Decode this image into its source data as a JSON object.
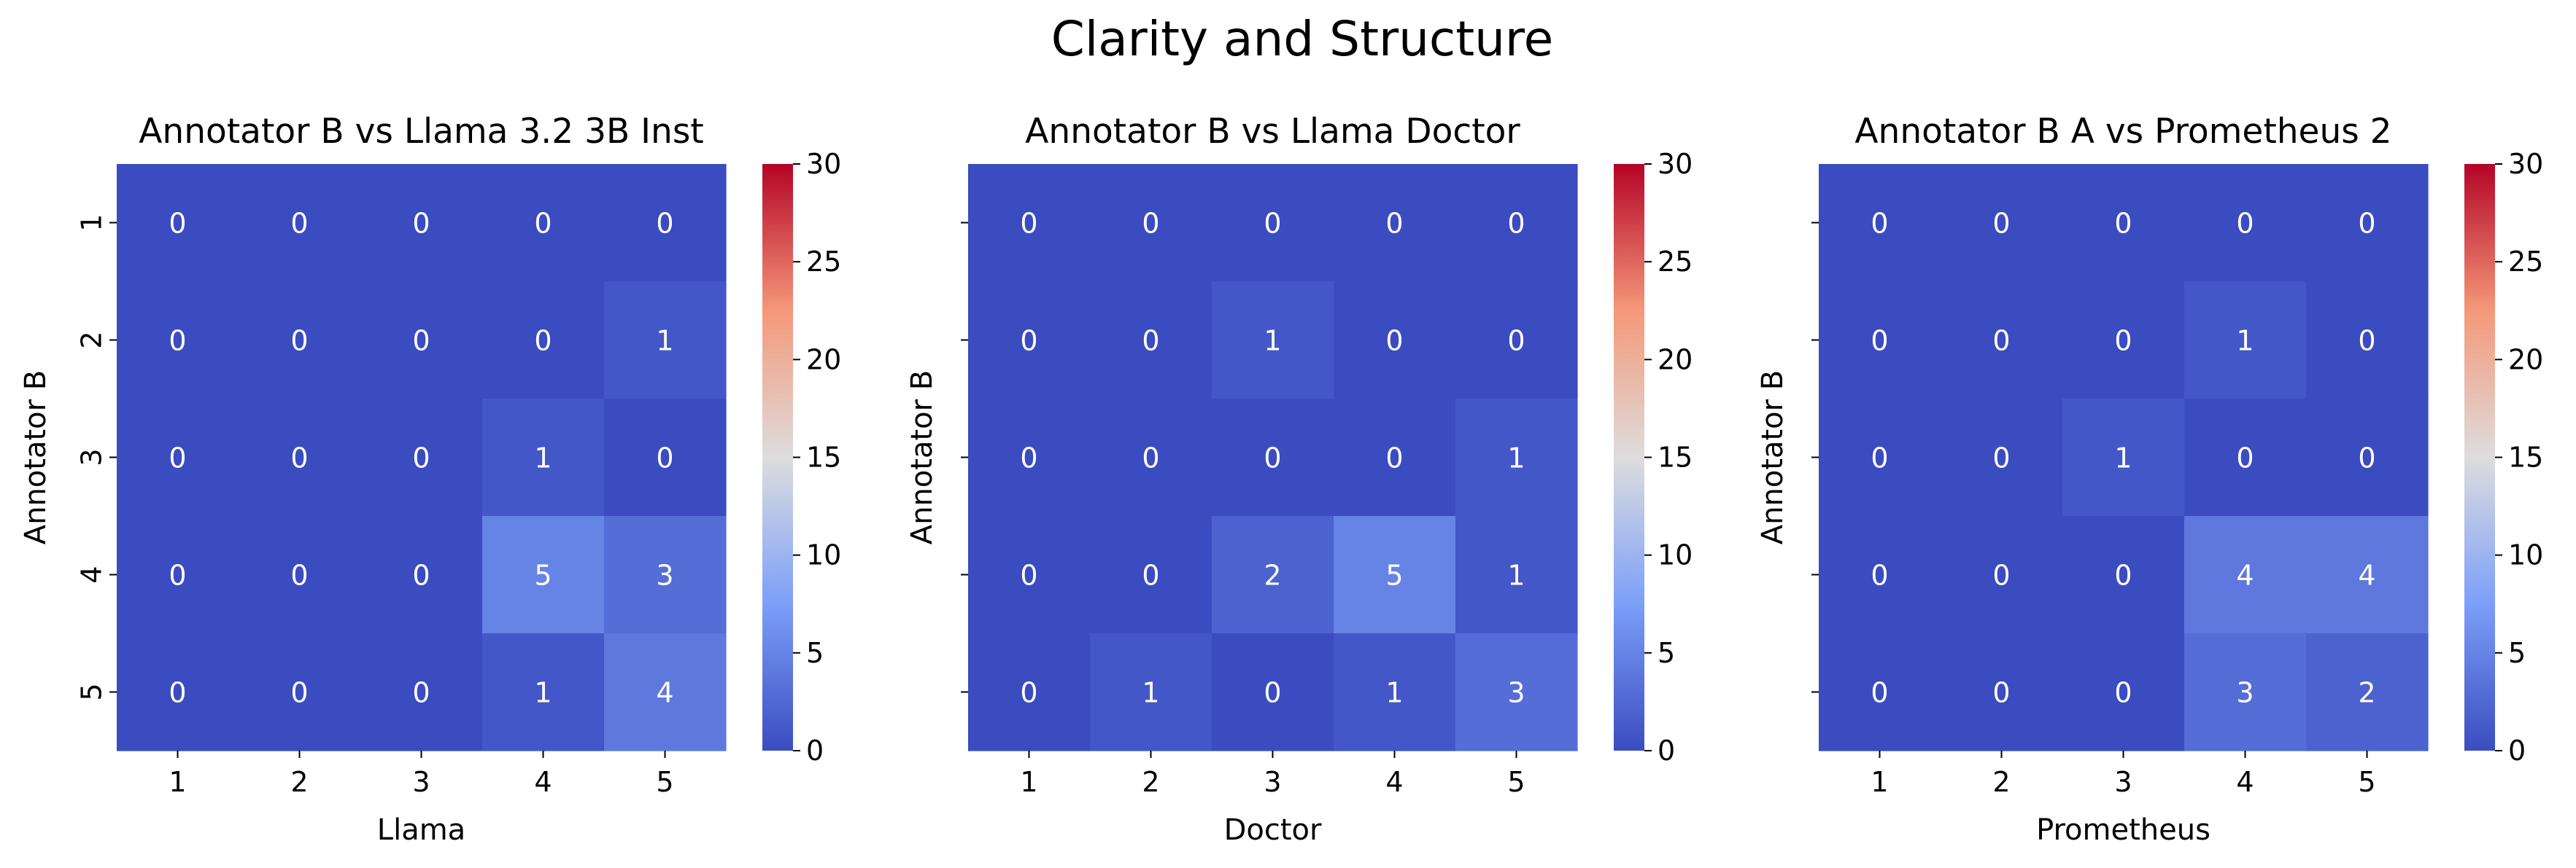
{
  "figure": {
    "title": "Clarity and Structure"
  },
  "chart_data": [
    {
      "type": "heatmap",
      "title": "Annotator B vs Llama 3.2 3B Inst",
      "xlabel": "Llama",
      "ylabel": "Annotator B",
      "x_categories": [
        "1",
        "2",
        "3",
        "4",
        "5"
      ],
      "y_categories": [
        "1",
        "2",
        "3",
        "4",
        "5"
      ],
      "values": [
        [
          0,
          0,
          0,
          0,
          0
        ],
        [
          0,
          0,
          0,
          0,
          1
        ],
        [
          0,
          0,
          0,
          1,
          0
        ],
        [
          0,
          0,
          0,
          5,
          3
        ],
        [
          0,
          0,
          0,
          1,
          4
        ]
      ],
      "colorbar": {
        "min": 0,
        "max": 30,
        "ticks": [
          0,
          5,
          10,
          15,
          20,
          25,
          30
        ],
        "colormap": "coolwarm"
      }
    },
    {
      "type": "heatmap",
      "title": "Annotator B vs Llama Doctor",
      "xlabel": "Doctor",
      "ylabel": "Annotator B",
      "x_categories": [
        "1",
        "2",
        "3",
        "4",
        "5"
      ],
      "y_categories": [
        "1",
        "2",
        "3",
        "4",
        "5"
      ],
      "values": [
        [
          0,
          0,
          0,
          0,
          0
        ],
        [
          0,
          0,
          1,
          0,
          0
        ],
        [
          0,
          0,
          0,
          0,
          1
        ],
        [
          0,
          0,
          2,
          5,
          1
        ],
        [
          0,
          1,
          0,
          1,
          3
        ]
      ],
      "colorbar": {
        "min": 0,
        "max": 30,
        "ticks": [
          0,
          5,
          10,
          15,
          20,
          25,
          30
        ],
        "colormap": "coolwarm"
      }
    },
    {
      "type": "heatmap",
      "title": "Annotator B A vs Prometheus 2",
      "xlabel": "Prometheus",
      "ylabel": "Annotator B",
      "x_categories": [
        "1",
        "2",
        "3",
        "4",
        "5"
      ],
      "y_categories": [
        "1",
        "2",
        "3",
        "4",
        "5"
      ],
      "values": [
        [
          0,
          0,
          0,
          0,
          0
        ],
        [
          0,
          0,
          0,
          1,
          0
        ],
        [
          0,
          0,
          1,
          0,
          0
        ],
        [
          0,
          0,
          0,
          4,
          4
        ],
        [
          0,
          0,
          0,
          3,
          2
        ]
      ],
      "colorbar": {
        "min": 0,
        "max": 30,
        "ticks": [
          0,
          5,
          10,
          15,
          20,
          25,
          30
        ],
        "colormap": "coolwarm"
      }
    }
  ]
}
